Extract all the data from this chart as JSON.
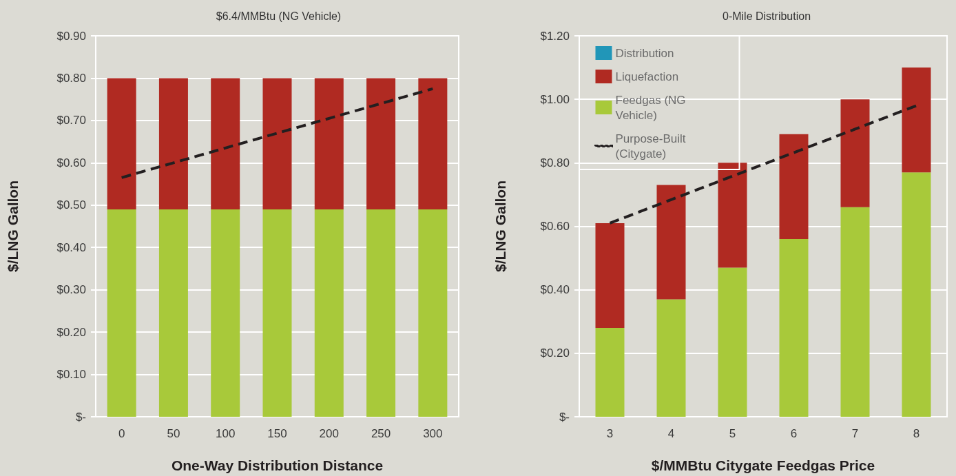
{
  "chart_data": [
    {
      "type": "bar",
      "title": "$6.4/MMBtu (NG Vehicle)",
      "xlabel": "One-Way Distribution Distance",
      "ylabel": "$/LNG Gallon",
      "categories": [
        "0",
        "50",
        "100",
        "150",
        "200",
        "250",
        "300"
      ],
      "stacked": true,
      "marker": "none",
      "line_style": "dashed",
      "grid": "y",
      "series": [
        {
          "color": "#a8c93a",
          "values": [
            0.49,
            0.49,
            0.49,
            0.49,
            0.49,
            0.49,
            0.49
          ]
        },
        {
          "color": "#b02a22",
          "values": [
            0.31,
            0.31,
            0.31,
            0.31,
            0.31,
            0.31,
            0.31
          ]
        },
        {
          "type": "line",
          "color": "#231f20",
          "values": [
            0.565,
            0.6,
            0.635,
            0.67,
            0.705,
            0.74,
            0.775
          ]
        }
      ],
      "ylim": [
        0,
        0.9
      ],
      "yticks": [
        {
          "value": 0,
          "label": "$-"
        },
        {
          "value": 0.1,
          "label": "$0.10"
        },
        {
          "value": 0.2,
          "label": "$0.20"
        },
        {
          "value": 0.3,
          "label": "$0.30"
        },
        {
          "value": 0.4,
          "label": "$0.40"
        },
        {
          "value": 0.5,
          "label": "$0.50"
        },
        {
          "value": 0.6,
          "label": "$0.60"
        },
        {
          "value": 0.7,
          "label": "$0.70"
        },
        {
          "value": 0.8,
          "label": "$0.80"
        },
        {
          "value": 0.9,
          "label": "$0.90"
        }
      ]
    },
    {
      "type": "bar",
      "title": "0-Mile Distribution",
      "xlabel": "$/MMBtu Citygate Feedgas Price",
      "ylabel": "$/LNG Gallon",
      "categories": [
        "3",
        "4",
        "5",
        "6",
        "7",
        "8"
      ],
      "stacked": true,
      "marker": "none",
      "line_style": "dashed",
      "grid": "y",
      "legend": "top left",
      "series": [
        {
          "name": "Feedgas (NG Vehicle)",
          "color": "#a8c93a",
          "values": [
            0.28,
            0.37,
            0.47,
            0.56,
            0.66,
            0.77
          ]
        },
        {
          "name": "Liquefaction",
          "color": "#b02a22",
          "values": [
            0.33,
            0.36,
            0.33,
            0.33,
            0.34,
            0.33
          ]
        },
        {
          "name": "Distribution",
          "color": "#2196b8",
          "values": [
            0,
            0,
            0,
            0,
            0,
            0
          ]
        },
        {
          "name": "Purpose-Built (Citygate)",
          "type": "line",
          "color": "#231f20",
          "values": [
            0.61,
            0.684,
            0.758,
            0.832,
            0.906,
            0.98
          ]
        }
      ],
      "ylim": [
        0,
        1.2
      ],
      "yticks": [
        {
          "value": 0,
          "label": "$-"
        },
        {
          "value": 0.2,
          "label": "$0.20"
        },
        {
          "value": 0.4,
          "label": "$0.40"
        },
        {
          "value": 0.6,
          "label": "$0.60"
        },
        {
          "value": 0.8,
          "label": "$0.80"
        },
        {
          "value": 1.0,
          "label": "$1.00"
        },
        {
          "value": 1.2,
          "label": "$1.20"
        }
      ]
    }
  ]
}
